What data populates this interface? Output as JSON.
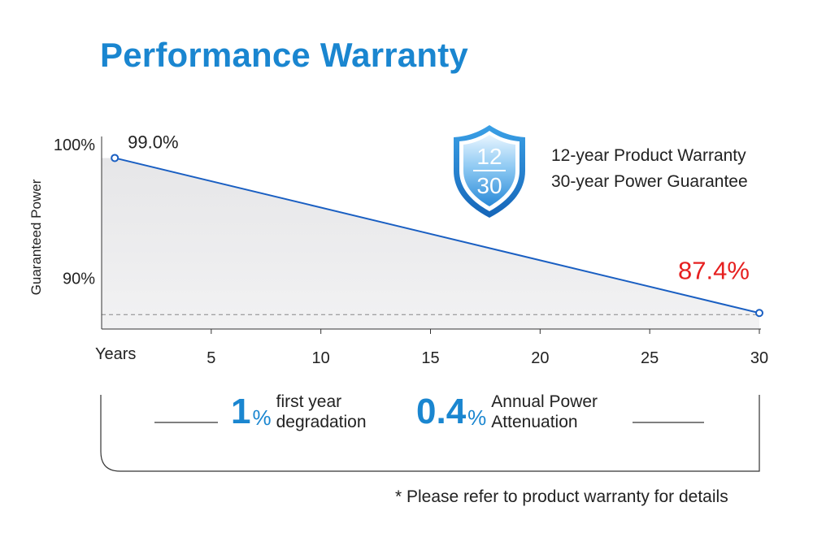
{
  "title": "Performance Warranty",
  "chart_data": {
    "type": "area",
    "title": "Performance Warranty",
    "ylabel": "Guaranteed Power",
    "xlabel": "Years",
    "x_ticks": [
      "5",
      "10",
      "15",
      "20",
      "25",
      "30"
    ],
    "y_ticks": [
      "100%",
      "90%"
    ],
    "series": [
      {
        "name": "Guaranteed Power",
        "points": [
          {
            "x": 0.6,
            "y": 99.0
          },
          {
            "x": 30,
            "y": 87.4
          }
        ]
      }
    ],
    "point_labels": {
      "start": "99.0%",
      "end": "87.4%"
    },
    "xlim": [
      0,
      30
    ],
    "ylim": [
      86.2,
      100
    ],
    "reference_line_y": 87.4,
    "colors": {
      "line": "#1a5fc2",
      "fill": "#ebebed",
      "end_label": "#e62020",
      "accent": "#1a86d0"
    }
  },
  "shield": {
    "top": "12",
    "bottom": "30"
  },
  "warranty": {
    "line1": "12-year Product  Warranty",
    "line2": "30-year Power Guarantee"
  },
  "stats": [
    {
      "number": "1",
      "unit": "%",
      "line1": "first year",
      "line2": "degradation"
    },
    {
      "number": "0.4",
      "unit": "%",
      "line1": "Annual Power",
      "line2": "Attenuation"
    }
  ],
  "note": "* Please refer to product warranty for details"
}
